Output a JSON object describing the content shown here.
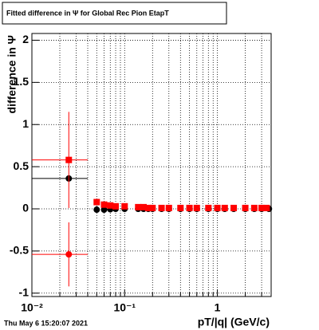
{
  "chart_data": {
    "type": "scatter",
    "title": "Fitted difference in  Ψ  for Global Rec Pion EtapT",
    "x_label": "pT/|q| (GeV/c)",
    "y_label": "difference in  Ψ",
    "footer": "Thu May  6 15:20:07 2021",
    "log_x": true,
    "grid": true,
    "xlim": [
      0.01,
      3.8
    ],
    "ylim": [
      -1.04,
      2.08
    ],
    "xticks": [
      {
        "value": 0.01,
        "label": "10⁻²"
      },
      {
        "value": 0.1,
        "label": "10⁻¹"
      },
      1
    ],
    "xminor_ticks": [
      0.02,
      0.03,
      0.04,
      0.05,
      0.06,
      0.07,
      0.08,
      0.09,
      0.2,
      0.3,
      0.4,
      0.5,
      0.6,
      0.7,
      0.8,
      0.9,
      2,
      3
    ],
    "yticks": [
      -1,
      -0.5,
      0,
      0.5,
      1,
      1.5,
      2
    ],
    "series": [
      {
        "marker": "circle",
        "color": "#000000",
        "x": [
          0.025
        ],
        "values": [
          0.36
        ],
        "errors": [
          0.0
        ],
        "x_low": [
          0.01
        ],
        "x_high": [
          0.04
        ]
      },
      {
        "marker": "square",
        "color": "#ff0000",
        "x": [
          0.025
        ],
        "values": [
          0.58
        ],
        "errors": [
          0.57
        ],
        "x_low": [
          0.01
        ],
        "x_high": [
          0.04
        ]
      },
      {
        "marker": "circle",
        "color": "#ff0000",
        "x": [
          0.025
        ],
        "values": [
          -0.54
        ],
        "errors": [
          0.38
        ],
        "x_low": [
          0.01
        ],
        "x_high": [
          0.04
        ]
      },
      {
        "marker": "circle",
        "color": "#000000",
        "x": [
          0.05,
          0.06,
          0.07,
          0.08,
          0.1,
          0.14,
          0.16,
          0.18,
          0.2,
          0.25,
          0.3,
          0.4,
          0.5,
          0.6,
          0.8,
          1,
          1.2,
          1.5,
          2,
          2.5,
          3,
          3.6
        ],
        "values": [
          -0.01,
          -0.01,
          -0.005,
          0,
          0,
          0,
          0,
          0,
          0,
          0,
          0,
          0,
          0,
          0,
          0,
          0,
          0,
          0,
          0,
          0,
          0,
          0
        ]
      },
      {
        "marker": "square",
        "color": "#ff0000",
        "x": [
          0.05,
          0.06,
          0.07,
          0.08,
          0.1,
          0.14,
          0.16,
          0.18,
          0.2,
          0.25,
          0.3,
          0.4,
          0.5,
          0.6,
          0.8,
          1,
          1.2,
          1.5,
          2,
          2.5,
          3,
          3.4
        ],
        "values": [
          0.08,
          0.05,
          0.04,
          0.03,
          0.03,
          0.02,
          0.02,
          0.01,
          0.01,
          0.01,
          0.01,
          0.01,
          0.01,
          0.01,
          0.01,
          0.01,
          0.01,
          0.01,
          0.01,
          0.01,
          0.01,
          0.01
        ]
      }
    ]
  }
}
